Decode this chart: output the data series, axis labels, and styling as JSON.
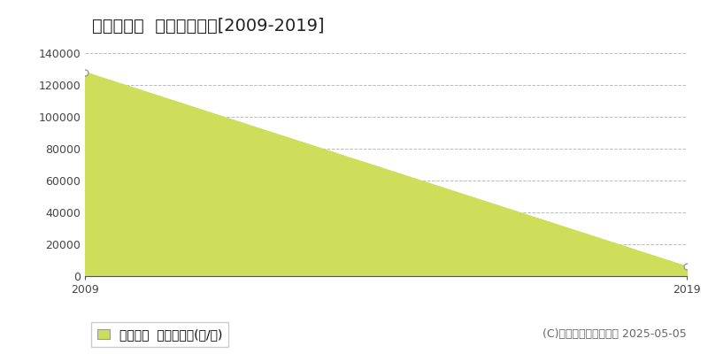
{
  "title": "鳥取市布勢  林地価格推移[2009-2019]",
  "years": [
    2009,
    2019
  ],
  "values": [
    128000,
    6000
  ],
  "ylim": [
    0,
    140000
  ],
  "yticks": [
    0,
    20000,
    40000,
    60000,
    80000,
    100000,
    120000,
    140000
  ],
  "ytick_labels": [
    "0",
    "20000",
    "40000",
    "60000",
    "80000",
    "100000",
    "120000",
    "140000"
  ],
  "xticks": [
    2009,
    2019
  ],
  "fill_color": "#cede5a",
  "line_color": "#cede5a",
  "dot_edge_color": "#999999",
  "background_color": "#ffffff",
  "grid_color": "#bbbbbb",
  "legend_label": "林地価格  平均坪単価(円/坪)",
  "legend_color": "#cede5a",
  "copyright_text": "(C)土地価格ドットコム 2025-05-05",
  "title_fontsize": 14,
  "tick_fontsize": 9,
  "legend_fontsize": 10,
  "copyright_fontsize": 9
}
